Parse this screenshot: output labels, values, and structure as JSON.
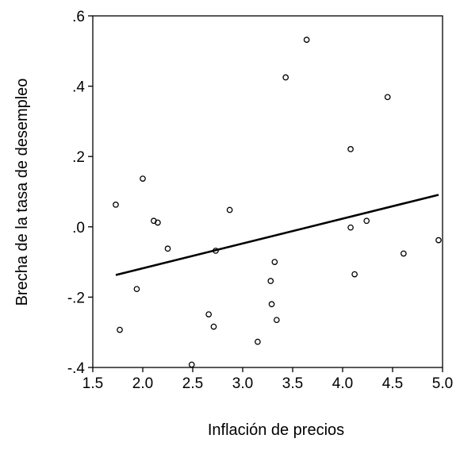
{
  "chart_data": {
    "type": "scatter",
    "title": "",
    "xlabel": "Inflación de precios",
    "ylabel": "Brecha de la tasa de desempleo",
    "xlim": [
      1.5,
      5.0
    ],
    "ylim": [
      -0.4,
      0.6
    ],
    "x_ticks": [
      "1.5",
      "2.0",
      "2.5",
      "3.0",
      "3.5",
      "4.0",
      "4.5",
      "5.0"
    ],
    "y_ticks": [
      "-.4",
      "-.2",
      ".0",
      ".2",
      ".4",
      ".6"
    ],
    "grid": false,
    "series": [
      {
        "kind": "scatter",
        "marker": "hollow-circle",
        "points": [
          {
            "x": 1.73,
            "y": 0.063
          },
          {
            "x": 1.77,
            "y": -0.293
          },
          {
            "x": 1.94,
            "y": -0.177
          },
          {
            "x": 2.0,
            "y": 0.137
          },
          {
            "x": 2.11,
            "y": 0.017
          },
          {
            "x": 2.15,
            "y": 0.012
          },
          {
            "x": 2.25,
            "y": -0.062
          },
          {
            "x": 2.49,
            "y": -0.392
          },
          {
            "x": 2.66,
            "y": -0.249
          },
          {
            "x": 2.71,
            "y": -0.284
          },
          {
            "x": 2.73,
            "y": -0.068
          },
          {
            "x": 2.87,
            "y": 0.048
          },
          {
            "x": 3.15,
            "y": -0.327
          },
          {
            "x": 3.28,
            "y": -0.154
          },
          {
            "x": 3.29,
            "y": -0.22
          },
          {
            "x": 3.32,
            "y": -0.1
          },
          {
            "x": 3.34,
            "y": -0.265
          },
          {
            "x": 3.43,
            "y": 0.425
          },
          {
            "x": 3.64,
            "y": 0.532
          },
          {
            "x": 4.08,
            "y": 0.221
          },
          {
            "x": 4.08,
            "y": -0.002
          },
          {
            "x": 4.12,
            "y": -0.135
          },
          {
            "x": 4.24,
            "y": 0.017
          },
          {
            "x": 4.45,
            "y": 0.369
          },
          {
            "x": 4.61,
            "y": -0.076
          },
          {
            "x": 4.96,
            "y": -0.038
          }
        ]
      },
      {
        "kind": "line",
        "style": "fit-line",
        "points": [
          {
            "x": 1.73,
            "y": -0.137
          },
          {
            "x": 4.96,
            "y": 0.091
          }
        ]
      }
    ],
    "colors": {
      "marker": "#000000",
      "line": "#000000",
      "axis": "#000000"
    }
  }
}
